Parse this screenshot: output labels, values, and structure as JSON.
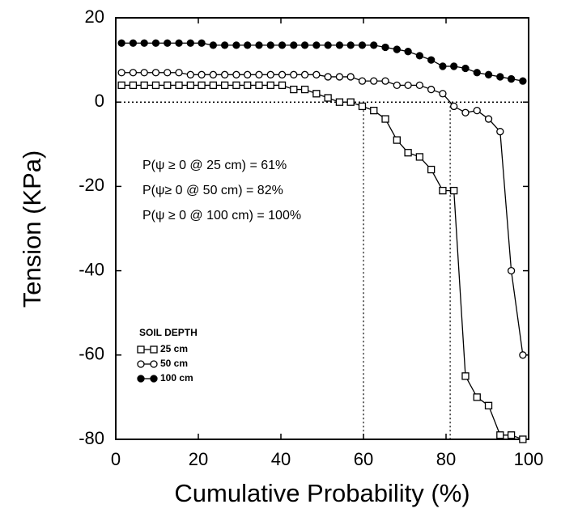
{
  "chart_data": {
    "type": "line",
    "xlabel": "Cumulative Probability (%)",
    "ylabel": "Tension (KPa)",
    "xlim": [
      0,
      100
    ],
    "xticks": [
      0,
      20,
      40,
      60,
      80,
      100
    ],
    "ylim": [
      -80,
      20
    ],
    "yticks": [
      -80,
      -60,
      -40,
      -20,
      0,
      20
    ],
    "hline": 0,
    "vlines": [
      60,
      81
    ],
    "annotations": [
      "P(ψ ≥ 0 @ 25 cm) = 61%",
      "P(ψ≥ 0 @ 50 cm) = 82%",
      "P(ψ ≥ 0 @ 100 cm) = 100%"
    ],
    "legend_title": "SOIL DEPTH",
    "legend_position": "lower left",
    "x": [
      1.4,
      4.2,
      6.9,
      9.7,
      12.5,
      15.3,
      18.1,
      20.8,
      23.6,
      26.4,
      29.2,
      31.9,
      34.7,
      37.5,
      40.3,
      43.1,
      45.8,
      48.6,
      51.4,
      54.2,
      56.9,
      59.7,
      62.5,
      65.3,
      68.1,
      70.8,
      73.6,
      76.4,
      79.2,
      81.9,
      84.7,
      87.5,
      90.3,
      93.1,
      95.8,
      98.6
    ],
    "series": [
      {
        "name": "25 cm",
        "color": "#000",
        "marker": "open-square",
        "values": [
          4,
          4,
          4,
          4,
          4,
          4,
          4,
          4,
          4,
          4,
          4,
          4,
          4,
          4,
          4,
          3,
          3,
          2,
          1,
          0,
          0,
          -1,
          -2,
          -4,
          -9,
          -12,
          -13,
          -16,
          -21,
          -21,
          -65,
          -70,
          -72,
          -79,
          -79,
          -80
        ]
      },
      {
        "name": "50 cm",
        "color": "#000",
        "marker": "open-circle",
        "values": [
          7,
          7,
          7,
          7,
          7,
          7,
          6.5,
          6.5,
          6.5,
          6.5,
          6.5,
          6.5,
          6.5,
          6.5,
          6.5,
          6.5,
          6.5,
          6.5,
          6,
          6,
          6,
          5,
          5,
          5,
          4,
          4,
          4,
          3,
          2,
          -1,
          -2.5,
          -2,
          -4,
          -7,
          -40,
          -60
        ]
      },
      {
        "name": "100 cm",
        "color": "#000",
        "marker": "filled-circle",
        "values": [
          14,
          14,
          14,
          14,
          14,
          14,
          14,
          14,
          13.5,
          13.5,
          13.5,
          13.5,
          13.5,
          13.5,
          13.5,
          13.5,
          13.5,
          13.5,
          13.5,
          13.5,
          13.5,
          13.5,
          13.5,
          13,
          12.5,
          12,
          11,
          10,
          8.5,
          8.5,
          8,
          7,
          6.5,
          6,
          5.5,
          5
        ]
      }
    ]
  }
}
